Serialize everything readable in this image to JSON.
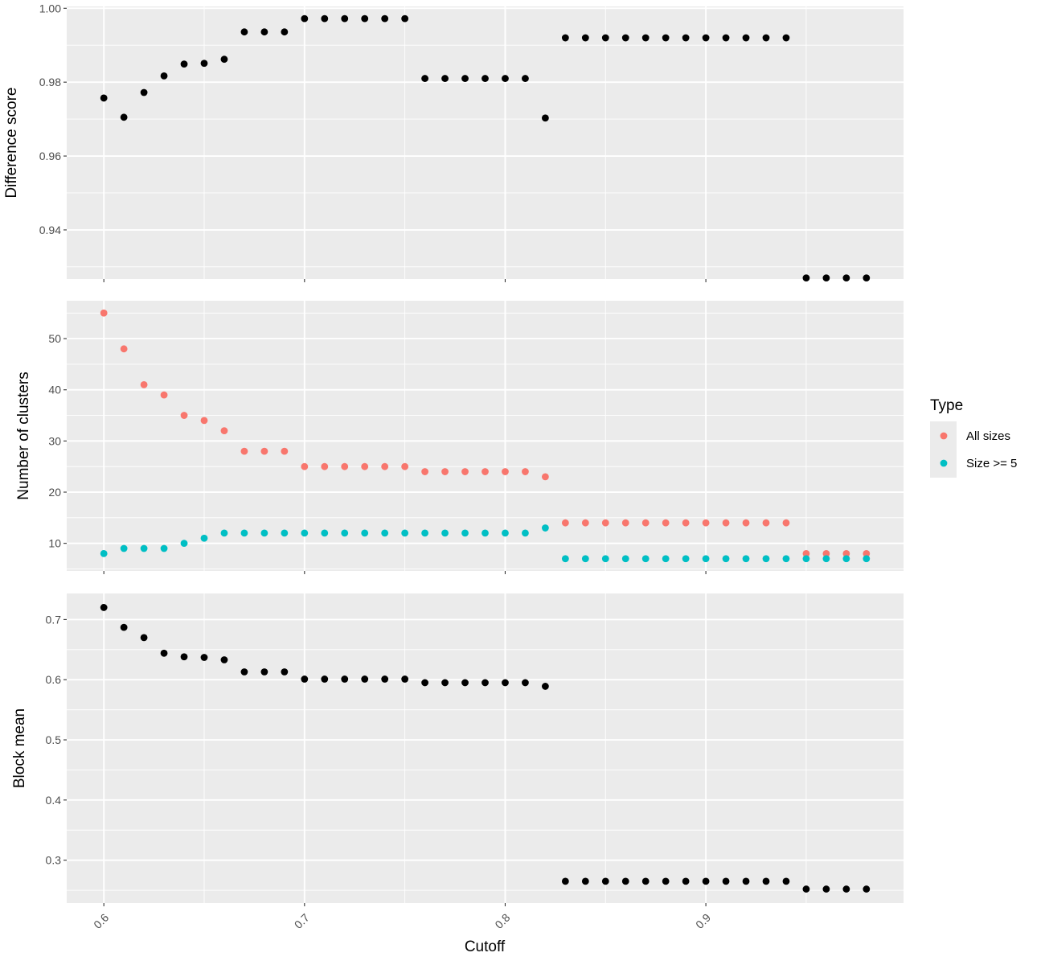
{
  "chart_data": {
    "type": "scatter",
    "xlabel": "Cutoff",
    "x": [
      0.6,
      0.61,
      0.62,
      0.63,
      0.64,
      0.65,
      0.66,
      0.67,
      0.68,
      0.69,
      0.7,
      0.71,
      0.72,
      0.73,
      0.74,
      0.75,
      0.76,
      0.77,
      0.78,
      0.79,
      0.8,
      0.81,
      0.82,
      0.83,
      0.84,
      0.85,
      0.86,
      0.87,
      0.88,
      0.89,
      0.9,
      0.91,
      0.92,
      0.93,
      0.94,
      0.95,
      0.96,
      0.97,
      0.98
    ],
    "xlim": [
      0.5815,
      0.9985
    ],
    "xticks": [
      0.6,
      0.7,
      0.8,
      0.9
    ],
    "xtick_labels": [
      "0.6",
      "0.7",
      "0.8",
      "0.9"
    ],
    "panels": [
      {
        "ylabel": "Difference score",
        "ylim": [
          0.9267,
          1.0005
        ],
        "yticks": [
          0.94,
          0.96,
          0.98,
          1.0
        ],
        "ytick_labels": [
          "0.94",
          "0.96",
          "0.98",
          "1.00"
        ],
        "series": [
          {
            "color": "#000000",
            "values": [
              0.9757,
              0.9705,
              0.9772,
              0.9817,
              0.9849,
              0.9851,
              0.9862,
              0.9936,
              0.9936,
              0.9936,
              0.9972,
              0.9972,
              0.9972,
              0.9972,
              0.9972,
              0.9972,
              0.981,
              0.981,
              0.981,
              0.981,
              0.981,
              0.981,
              0.9703,
              0.992,
              0.992,
              0.992,
              0.992,
              0.992,
              0.992,
              0.992,
              0.992,
              0.992,
              0.992,
              0.992,
              0.992,
              0.927,
              0.927,
              0.927,
              0.927
            ]
          }
        ]
      },
      {
        "ylabel": "Number of clusters",
        "ylim": [
          4.6,
          57.4
        ],
        "yticks": [
          10,
          20,
          30,
          40,
          50
        ],
        "ytick_labels": [
          "10",
          "20",
          "30",
          "40",
          "50"
        ],
        "series": [
          {
            "name": "All sizes",
            "color": "#F8766D",
            "values": [
              55,
              48,
              41,
              39,
              35,
              34,
              32,
              28,
              28,
              28,
              25,
              25,
              25,
              25,
              25,
              25,
              24,
              24,
              24,
              24,
              24,
              24,
              23,
              14,
              14,
              14,
              14,
              14,
              14,
              14,
              14,
              14,
              14,
              14,
              14,
              8,
              8,
              8,
              8
            ]
          },
          {
            "name": "Size >= 5",
            "color": "#00BFC4",
            "values": [
              8,
              9,
              9,
              9,
              10,
              11,
              12,
              12,
              12,
              12,
              12,
              12,
              12,
              12,
              12,
              12,
              12,
              12,
              12,
              12,
              12,
              12,
              13,
              7,
              7,
              7,
              7,
              7,
              7,
              7,
              7,
              7,
              7,
              7,
              7,
              7,
              7,
              7,
              7
            ]
          }
        ]
      },
      {
        "ylabel": "Block mean",
        "ylim": [
          0.2287,
          0.7433
        ],
        "yticks": [
          0.3,
          0.4,
          0.5,
          0.6,
          0.7
        ],
        "ytick_labels": [
          "0.3",
          "0.4",
          "0.5",
          "0.6",
          "0.7"
        ],
        "series": [
          {
            "color": "#000000",
            "values": [
              0.72,
              0.687,
              0.67,
              0.644,
              0.638,
              0.637,
              0.633,
              0.613,
              0.613,
              0.613,
              0.601,
              0.601,
              0.601,
              0.601,
              0.601,
              0.601,
              0.595,
              0.595,
              0.595,
              0.595,
              0.595,
              0.595,
              0.589,
              0.265,
              0.265,
              0.265,
              0.265,
              0.265,
              0.265,
              0.265,
              0.265,
              0.265,
              0.265,
              0.265,
              0.265,
              0.252,
              0.252,
              0.252,
              0.252
            ]
          }
        ]
      }
    ],
    "legend": {
      "title": "Type",
      "placement": "right",
      "items": [
        {
          "label": "All sizes",
          "color": "#F8766D"
        },
        {
          "label": "Size >= 5",
          "color": "#00BFC4"
        }
      ]
    },
    "grid": true
  }
}
